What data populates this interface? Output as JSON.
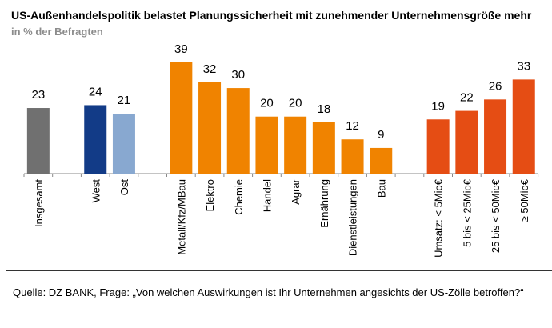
{
  "chart_data": {
    "type": "bar",
    "title": "US-Außenhandelspolitik belastet Planungssicherheit mit zunehmender Unternehmensgröße mehr",
    "subtitle": "in % der Befragten",
    "categories": [
      "Insgesamt",
      "",
      "West",
      "Ost",
      "",
      "Metall/Kfz/MBau",
      "Elektro",
      "Chemie",
      "Handel",
      "Agrar",
      "Ernährung",
      "Dienstleistungen",
      "Bau",
      "",
      "Umsatz: < 5Mio€",
      "5 bis < 25Mio€",
      "25 bis < 50Mio€",
      "≥ 50Mio€"
    ],
    "values": [
      23,
      null,
      24,
      21,
      null,
      39,
      32,
      30,
      20,
      20,
      18,
      12,
      9,
      null,
      19,
      22,
      26,
      33
    ],
    "colors": [
      "#707070",
      null,
      "#123b87",
      "#88a8d0",
      null,
      "#f08300",
      "#f08300",
      "#f08300",
      "#f08300",
      "#f08300",
      "#f08300",
      "#f08300",
      "#f08300",
      null,
      "#e54d14",
      "#e54d14",
      "#e54d14",
      "#e54d14"
    ],
    "xlabel": "",
    "ylabel": "",
    "ylim": [
      0,
      40
    ],
    "grid": false,
    "data_labels": true
  },
  "source": "Quelle: DZ BANK, Frage: „Von welchen Auswirkungen ist Ihr Unternehmen angesichts der US-Zölle betroffen?“"
}
